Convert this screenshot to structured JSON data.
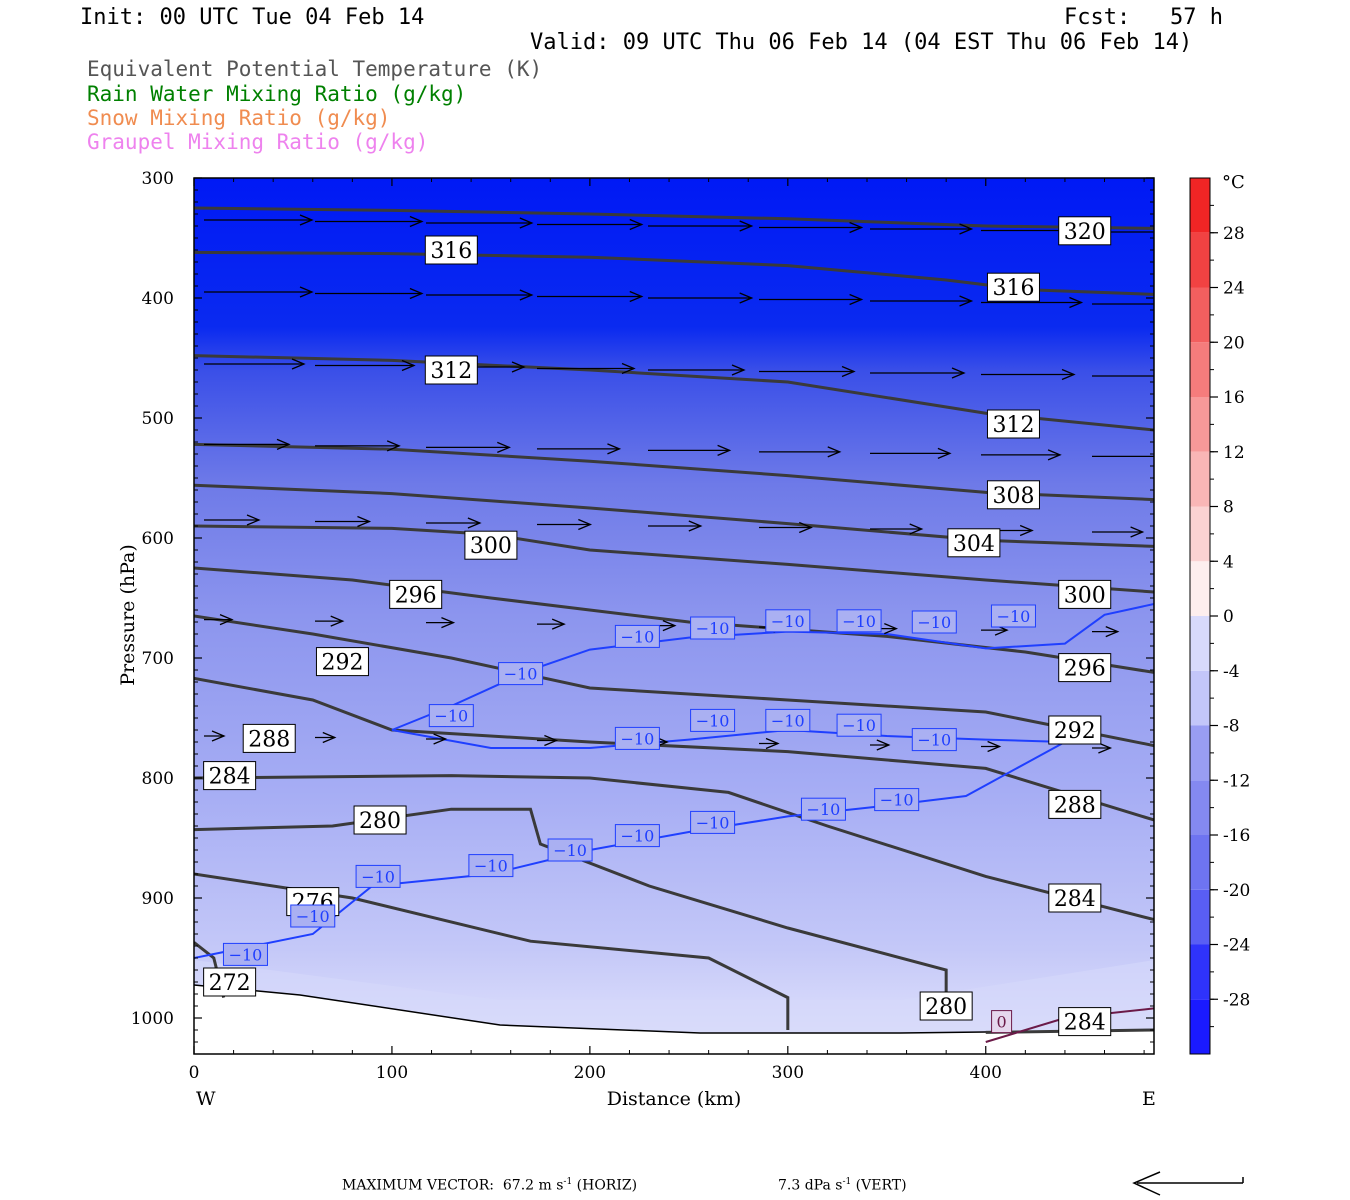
{
  "header": {
    "init": "Init: 00 UTC Tue 04 Feb 14",
    "fcst": "Fcst:   57 h",
    "valid": "Valid: 09 UTC Thu 06 Feb 14 (04 EST Thu 06 Feb 14)"
  },
  "legend": [
    {
      "label": "Equivalent Potential Temperature (K)",
      "color": "#555555"
    },
    {
      "label": "Rain Water Mixing Ratio (g/kg)",
      "color": "#008000"
    },
    {
      "label": "Snow Mixing Ratio (g/kg)",
      "color": "#f08c50"
    },
    {
      "label": "Graupel Mixing Ratio (g/kg)",
      "color": "#ee82ee"
    }
  ],
  "footer": {
    "max_vector": "MAXIMUM VECTOR:  67.2 m s",
    "horiz_unit": "-1",
    "horiz_suffix": " (HORIZ)",
    "vert_value": "7.3 dPa s",
    "vert_unit": "-1",
    "vert_suffix": " (VERT)"
  },
  "chart_data": {
    "type": "contour",
    "xlabel": "Distance (km)",
    "ylabel": "Pressure (hPa)",
    "xlim": [
      0,
      485
    ],
    "ylim": [
      1030,
      300
    ],
    "x_ticks": [
      "0",
      "100",
      "200",
      "300",
      "400"
    ],
    "x_tick_values": [
      0,
      100,
      200,
      300,
      400
    ],
    "y_ticks": [
      "300",
      "400",
      "500",
      "600",
      "700",
      "800",
      "900",
      "1000"
    ],
    "y_tick_values": [
      300,
      400,
      500,
      600,
      700,
      800,
      900,
      1000
    ],
    "direction_left": "W",
    "direction_right": "E",
    "colorbar": {
      "unit": "°C",
      "labels": [
        "28",
        "24",
        "20",
        "16",
        "12",
        "8",
        "4",
        "0",
        "-4",
        "-8",
        "-12",
        "-16",
        "-20",
        "-24",
        "-28"
      ],
      "values": [
        28,
        24,
        20,
        16,
        12,
        8,
        4,
        0,
        -4,
        -8,
        -12,
        -16,
        -20,
        -24,
        -28
      ],
      "range": [
        -32,
        32
      ]
    },
    "theta_e_contours": [
      {
        "level": 320,
        "label": "320",
        "points": [
          [
            0,
            325
          ],
          [
            100,
            327
          ],
          [
            200,
            330
          ],
          [
            300,
            334
          ],
          [
            400,
            340
          ],
          [
            485,
            342
          ]
        ]
      },
      {
        "level": 316,
        "label": "316",
        "points": [
          [
            0,
            362
          ],
          [
            100,
            363
          ],
          [
            200,
            366
          ],
          [
            300,
            373
          ],
          [
            380,
            385
          ],
          [
            420,
            393
          ],
          [
            485,
            397
          ]
        ]
      },
      {
        "level": 312,
        "label": "312",
        "points": [
          [
            0,
            448
          ],
          [
            100,
            452
          ],
          [
            200,
            460
          ],
          [
            300,
            470
          ],
          [
            400,
            496
          ],
          [
            485,
            510
          ]
        ]
      },
      {
        "level": 308,
        "label": "308",
        "points": [
          [
            0,
            522
          ],
          [
            100,
            526
          ],
          [
            200,
            536
          ],
          [
            300,
            548
          ],
          [
            400,
            562
          ],
          [
            485,
            568
          ]
        ]
      },
      {
        "level": 304,
        "label": "304",
        "points": [
          [
            0,
            556
          ],
          [
            100,
            563
          ],
          [
            200,
            575
          ],
          [
            300,
            588
          ],
          [
            400,
            602
          ],
          [
            485,
            607
          ]
        ]
      },
      {
        "level": 300,
        "label": "300",
        "points": [
          [
            0,
            590
          ],
          [
            100,
            592
          ],
          [
            150,
            597
          ],
          [
            200,
            610
          ],
          [
            300,
            622
          ],
          [
            400,
            635
          ],
          [
            485,
            645
          ]
        ]
      },
      {
        "level": 296,
        "label": "296",
        "points": [
          [
            0,
            625
          ],
          [
            80,
            635
          ],
          [
            150,
            650
          ],
          [
            250,
            670
          ],
          [
            350,
            682
          ],
          [
            420,
            695
          ],
          [
            485,
            712
          ]
        ]
      },
      {
        "level": 292,
        "label": "292",
        "points": [
          [
            0,
            665
          ],
          [
            60,
            680
          ],
          [
            130,
            700
          ],
          [
            200,
            725
          ],
          [
            300,
            735
          ],
          [
            400,
            745
          ],
          [
            485,
            773
          ]
        ]
      },
      {
        "level": 288,
        "label": "288",
        "points": [
          [
            0,
            717
          ],
          [
            60,
            735
          ],
          [
            100,
            760
          ],
          [
            200,
            770
          ],
          [
            300,
            778
          ],
          [
            400,
            792
          ],
          [
            485,
            835
          ]
        ]
      },
      {
        "level": 284,
        "label": "284",
        "points": [
          [
            0,
            800
          ],
          [
            130,
            798
          ],
          [
            200,
            800
          ],
          [
            270,
            812
          ],
          [
            320,
            840
          ],
          [
            400,
            882
          ],
          [
            485,
            918
          ]
        ]
      },
      {
        "level": 280,
        "label": "280",
        "points": [
          [
            0,
            843
          ],
          [
            70,
            840
          ],
          [
            130,
            826
          ],
          [
            170,
            826
          ],
          [
            175,
            855
          ],
          [
            230,
            890
          ],
          [
            300,
            925
          ],
          [
            380,
            960
          ],
          [
            380,
            1000
          ]
        ]
      },
      {
        "level": 276,
        "label": "276",
        "points": [
          [
            0,
            880
          ],
          [
            80,
            900
          ],
          [
            170,
            936
          ],
          [
            260,
            950
          ],
          [
            300,
            983
          ],
          [
            300,
            1010
          ]
        ]
      },
      {
        "level": 272,
        "label": "272",
        "points": [
          [
            0,
            937
          ],
          [
            10,
            950
          ],
          [
            15,
            983
          ]
        ]
      },
      {
        "level": 284,
        "label": "284",
        "points": [
          [
            400,
            1012
          ],
          [
            485,
            1010
          ]
        ]
      }
    ],
    "theta_e_labels": [
      {
        "text": "316",
        "x": 130,
        "p": 360
      },
      {
        "text": "320",
        "x": 450,
        "p": 344
      },
      {
        "text": "316",
        "x": 414,
        "p": 391
      },
      {
        "text": "312",
        "x": 130,
        "p": 460
      },
      {
        "text": "312",
        "x": 414,
        "p": 505
      },
      {
        "text": "308",
        "x": 414,
        "p": 564
      },
      {
        "text": "304",
        "x": 394,
        "p": 604
      },
      {
        "text": "300",
        "x": 150,
        "p": 606
      },
      {
        "text": "300",
        "x": 450,
        "p": 647
      },
      {
        "text": "296",
        "x": 112,
        "p": 647
      },
      {
        "text": "296",
        "x": 450,
        "p": 708
      },
      {
        "text": "292",
        "x": 75,
        "p": 703
      },
      {
        "text": "292",
        "x": 445,
        "p": 760
      },
      {
        "text": "288",
        "x": 38,
        "p": 767
      },
      {
        "text": "288",
        "x": 445,
        "p": 822
      },
      {
        "text": "284",
        "x": 18,
        "p": 798
      },
      {
        "text": "284",
        "x": 445,
        "p": 900
      },
      {
        "text": "280",
        "x": 94,
        "p": 835
      },
      {
        "text": "280",
        "x": 380,
        "p": 990
      },
      {
        "text": "276",
        "x": 60,
        "p": 903
      },
      {
        "text": "272",
        "x": 18,
        "p": 970
      },
      {
        "text": "284",
        "x": 450,
        "p": 1003
      }
    ],
    "isotherms": [
      {
        "level": -10,
        "label": "−10",
        "color": "#1f3fff",
        "points": [
          [
            100,
            760
          ],
          [
            130,
            740
          ],
          [
            170,
            710
          ],
          [
            200,
            693
          ],
          [
            250,
            683
          ],
          [
            300,
            678
          ],
          [
            350,
            680
          ],
          [
            400,
            692
          ],
          [
            440,
            688
          ],
          [
            460,
            664
          ],
          [
            485,
            655
          ]
        ]
      },
      {
        "level": -10,
        "label": "−10",
        "color": "#1f3fff",
        "points": [
          [
            100,
            760
          ],
          [
            150,
            775
          ],
          [
            200,
            775
          ],
          [
            250,
            768
          ],
          [
            300,
            760
          ],
          [
            350,
            765
          ],
          [
            400,
            768
          ],
          [
            440,
            770
          ]
        ]
      },
      {
        "level": -10,
        "label": "−10",
        "color": "#1f3fff",
        "points": [
          [
            0,
            950
          ],
          [
            60,
            930
          ],
          [
            90,
            890
          ],
          [
            150,
            880
          ],
          [
            200,
            860
          ],
          [
            250,
            845
          ],
          [
            300,
            832
          ],
          [
            350,
            823
          ],
          [
            390,
            815
          ],
          [
            440,
            770
          ]
        ]
      },
      {
        "level": 0,
        "label": "0",
        "color": "#6b1a48",
        "points": [
          [
            400,
            1020
          ],
          [
            440,
            1000
          ],
          [
            485,
            992
          ]
        ]
      }
    ],
    "isotherm_labels": [
      {
        "x": 130,
        "p": 748
      },
      {
        "x": 165,
        "p": 713
      },
      {
        "x": 224,
        "p": 682
      },
      {
        "x": 262,
        "p": 675
      },
      {
        "x": 300,
        "p": 669
      },
      {
        "x": 336,
        "p": 669
      },
      {
        "x": 374,
        "p": 670
      },
      {
        "x": 414,
        "p": 665
      },
      {
        "x": 224,
        "p": 767
      },
      {
        "x": 262,
        "p": 752
      },
      {
        "x": 300,
        "p": 752
      },
      {
        "x": 336,
        "p": 756
      },
      {
        "x": 374,
        "p": 768
      },
      {
        "x": 26,
        "p": 947
      },
      {
        "x": 60,
        "p": 915
      },
      {
        "x": 93,
        "p": 882
      },
      {
        "x": 150,
        "p": 873
      },
      {
        "x": 190,
        "p": 860
      },
      {
        "x": 224,
        "p": 848
      },
      {
        "x": 262,
        "p": 837
      },
      {
        "x": 318,
        "p": 826
      },
      {
        "x": 355,
        "p": 818
      }
    ],
    "isotherm_zero_label": {
      "text": "0",
      "x": 408,
      "p": 1003
    }
  }
}
